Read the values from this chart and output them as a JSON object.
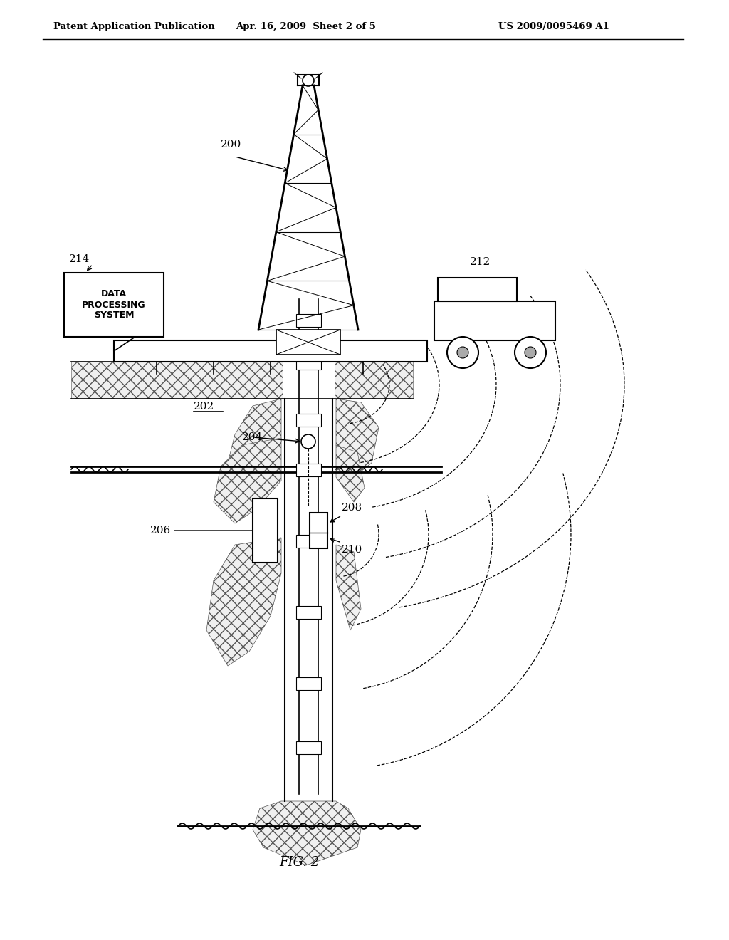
{
  "header_left": "Patent Application Publication",
  "header_mid": "Apr. 16, 2009  Sheet 2 of 5",
  "header_right": "US 2009/0095469 A1",
  "figure_label": "FIG. 2",
  "bg_color": "#ffffff",
  "line_color": "#000000"
}
